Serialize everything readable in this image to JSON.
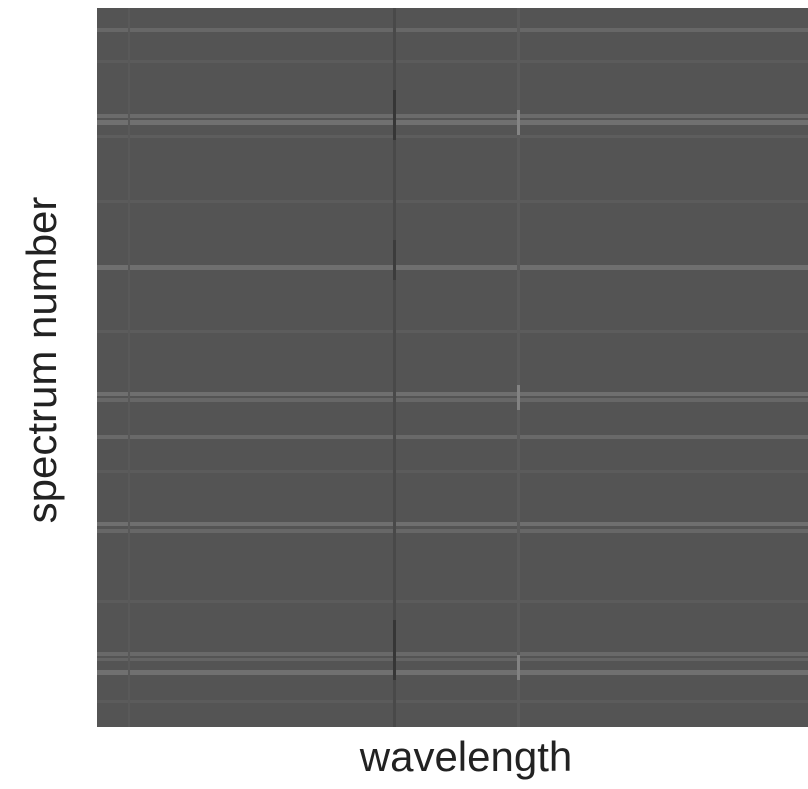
{
  "chart_data": {
    "type": "heatmap",
    "x_label": "wavelength",
    "y_label": "spectrum number"
  }
}
